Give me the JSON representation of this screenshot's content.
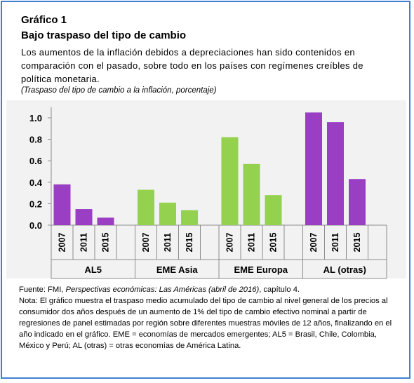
{
  "header": {
    "title": "Gráfico 1",
    "subtitle": "Bajo traspaso del tipo de cambio",
    "description": "Los aumentos de la inflación debidos a depreciaciones han sido contenidos en comparación con el pasado, sobre todo en los países con regímenes creíbles de política monetaria.",
    "units": "(Traspaso del tipo de cambio a la inflación, porcentaje)"
  },
  "chart_data": {
    "type": "bar",
    "ylim": [
      0,
      1.1
    ],
    "yticks": [
      "1.0",
      "0.8",
      "0.6",
      "0.4",
      "0.2",
      "0.0"
    ],
    "ytick_values": [
      1.0,
      0.8,
      0.6,
      0.4,
      0.2,
      0.0
    ],
    "groups": [
      {
        "label": "AL5",
        "color": "#9a3fc4",
        "bars": [
          {
            "year": "2007",
            "value": 0.38
          },
          {
            "year": "2011",
            "value": 0.15
          },
          {
            "year": "2015",
            "value": 0.07
          }
        ]
      },
      {
        "label": "EME Asia",
        "color": "#93d14f",
        "bars": [
          {
            "year": "2007",
            "value": 0.33
          },
          {
            "year": "2011",
            "value": 0.21
          },
          {
            "year": "2015",
            "value": 0.14
          }
        ]
      },
      {
        "label": "EME Europa",
        "color": "#93d14f",
        "bars": [
          {
            "year": "2007",
            "value": 0.82
          },
          {
            "year": "2011",
            "value": 0.57
          },
          {
            "year": "2015",
            "value": 0.28
          }
        ]
      },
      {
        "label": "AL (otras)",
        "color": "#9a3fc4",
        "bars": [
          {
            "year": "2007",
            "value": 1.05
          },
          {
            "year": "2011",
            "value": 0.96
          },
          {
            "year": "2015",
            "value": 0.43
          }
        ]
      }
    ],
    "grid": false,
    "legend": "none"
  },
  "footer": {
    "source_prefix": "Fuente: FMI, ",
    "source_title": "Perspectivas económicas: Las Américas (abril de 2016)",
    "source_suffix": ", capítulo 4.",
    "note": "Nota: El gráfico muestra el traspaso medio acumulado del tipo de cambio al nivel general de los precios al consumidor dos años después de un aumento de 1% del tipo de cambio efectivo nominal a partir de regresiones de panel estimadas por región sobre diferentes muestras móviles de 12 años, finalizando en el año indicado en el gráfico. EME = economías de mercados emergentes; AL5 = Brasil, Chile, Colombia, México y Perú; AL (otras) = otras economías de América Latina."
  }
}
